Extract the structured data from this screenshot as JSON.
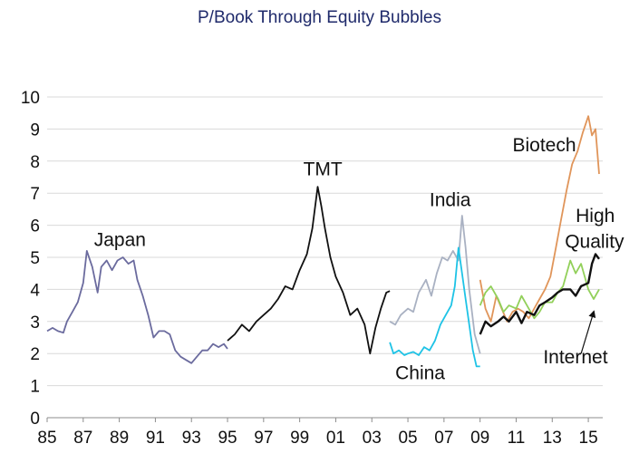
{
  "chart_data": {
    "type": "line",
    "title": "P/Book Through Equity Bubbles",
    "xlabel": "",
    "ylabel": "",
    "xlim": [
      1985,
      2015.8
    ],
    "ylim": [
      0,
      10
    ],
    "grid": true,
    "x_ticks": [
      1985,
      1987,
      1989,
      1991,
      1993,
      1995,
      1997,
      1999,
      2001,
      2003,
      2005,
      2007,
      2009,
      2011,
      2013,
      2015
    ],
    "x_tick_labels": [
      "85",
      "87",
      "89",
      "91",
      "93",
      "95",
      "97",
      "99",
      "01",
      "03",
      "05",
      "07",
      "09",
      "11",
      "13",
      "15"
    ],
    "y_ticks": [
      0,
      1,
      2,
      3,
      4,
      5,
      6,
      7,
      8,
      9,
      10
    ],
    "y_tick_labels": [
      "0",
      "1",
      "2",
      "3",
      "4",
      "5",
      "6",
      "7",
      "8",
      "9",
      "10"
    ],
    "series": [
      {
        "name": "Japan",
        "color": "#6b6b9e",
        "x": [
          1985.0,
          1985.3,
          1985.6,
          1985.9,
          1986.1,
          1986.4,
          1986.7,
          1987.0,
          1987.2,
          1987.5,
          1987.8,
          1988.0,
          1988.3,
          1988.6,
          1988.9,
          1989.2,
          1989.5,
          1989.8,
          1990.0,
          1990.3,
          1990.6,
          1990.9,
          1991.2,
          1991.5,
          1991.8,
          1992.1,
          1992.4,
          1992.7,
          1993.0,
          1993.3,
          1993.6,
          1993.9,
          1994.2,
          1994.5,
          1994.8,
          1995.0
        ],
        "y": [
          2.7,
          2.8,
          2.7,
          2.65,
          3.0,
          3.3,
          3.6,
          4.2,
          5.2,
          4.7,
          3.9,
          4.7,
          4.9,
          4.6,
          4.9,
          5.0,
          4.8,
          4.9,
          4.3,
          3.8,
          3.2,
          2.5,
          2.7,
          2.7,
          2.6,
          2.1,
          1.9,
          1.8,
          1.7,
          1.9,
          2.1,
          2.1,
          2.3,
          2.2,
          2.3,
          2.15
        ]
      },
      {
        "name": "TMT",
        "color": "#111111",
        "x": [
          1995.0,
          1995.4,
          1995.8,
          1996.2,
          1996.6,
          1997.0,
          1997.4,
          1997.8,
          1998.2,
          1998.6,
          1999.0,
          1999.4,
          1999.7,
          2000.0,
          2000.2,
          2000.4,
          2000.7,
          2001.0,
          2001.4,
          2001.8,
          2002.2,
          2002.6,
          2002.9,
          2003.2,
          2003.5,
          2003.8,
          2004.0
        ],
        "y": [
          2.4,
          2.6,
          2.9,
          2.7,
          3.0,
          3.2,
          3.4,
          3.7,
          4.1,
          4.0,
          4.6,
          5.1,
          5.9,
          7.2,
          6.6,
          5.9,
          5.0,
          4.4,
          3.9,
          3.2,
          3.4,
          2.9,
          2.0,
          2.8,
          3.4,
          3.9,
          3.95
        ]
      },
      {
        "name": "India",
        "color": "#a9b1c2",
        "x": [
          2004.0,
          2004.3,
          2004.6,
          2005.0,
          2005.3,
          2005.6,
          2006.0,
          2006.3,
          2006.6,
          2006.9,
          2007.2,
          2007.5,
          2007.8,
          2008.0,
          2008.2,
          2008.4,
          2008.7,
          2009.0
        ],
        "y": [
          3.0,
          2.9,
          3.2,
          3.4,
          3.3,
          3.9,
          4.3,
          3.8,
          4.5,
          5.0,
          4.9,
          5.2,
          4.9,
          6.3,
          5.3,
          4.0,
          2.6,
          2.0
        ]
      },
      {
        "name": "China",
        "color": "#1ec3e6",
        "x": [
          2004.0,
          2004.2,
          2004.5,
          2004.8,
          2005.0,
          2005.3,
          2005.6,
          2005.9,
          2006.2,
          2006.5,
          2006.8,
          2007.1,
          2007.4,
          2007.6,
          2007.8,
          2008.0,
          2008.2,
          2008.4,
          2008.6,
          2008.8,
          2009.0
        ],
        "y": [
          2.35,
          2.0,
          2.1,
          1.95,
          2.0,
          2.05,
          1.95,
          2.2,
          2.1,
          2.4,
          2.9,
          3.2,
          3.5,
          4.1,
          5.3,
          4.5,
          3.7,
          2.9,
          2.1,
          1.6,
          1.6
        ]
      },
      {
        "name": "Biotech",
        "color": "#e0955a",
        "x": [
          2009.0,
          2009.3,
          2009.6,
          2009.9,
          2010.2,
          2010.5,
          2010.8,
          2011.1,
          2011.4,
          2011.7,
          2012.0,
          2012.3,
          2012.6,
          2012.9,
          2013.2,
          2013.5,
          2013.8,
          2014.1,
          2014.4,
          2014.7,
          2015.0,
          2015.2,
          2015.4,
          2015.6
        ],
        "y": [
          4.3,
          3.4,
          3.0,
          3.8,
          3.4,
          3.0,
          3.3,
          3.4,
          3.3,
          3.1,
          3.4,
          3.7,
          4.0,
          4.4,
          5.3,
          6.2,
          7.1,
          7.9,
          8.3,
          8.9,
          9.4,
          8.8,
          9.0,
          7.6
        ]
      },
      {
        "name": "High Quality",
        "color": "#92d05a",
        "x": [
          2009.0,
          2009.3,
          2009.6,
          2010.0,
          2010.3,
          2010.6,
          2011.0,
          2011.3,
          2011.6,
          2012.0,
          2012.3,
          2012.6,
          2013.0,
          2013.3,
          2013.6,
          2014.0,
          2014.3,
          2014.6,
          2015.0,
          2015.3,
          2015.6
        ],
        "y": [
          3.5,
          3.9,
          4.1,
          3.7,
          3.3,
          3.5,
          3.4,
          3.8,
          3.5,
          3.1,
          3.3,
          3.6,
          3.6,
          3.9,
          4.1,
          4.9,
          4.5,
          4.8,
          4.0,
          3.7,
          4.0
        ]
      },
      {
        "name": "Internet",
        "color": "#111111",
        "x": [
          2009.0,
          2009.3,
          2009.6,
          2010.0,
          2010.3,
          2010.6,
          2011.0,
          2011.3,
          2011.6,
          2012.0,
          2012.3,
          2012.6,
          2013.0,
          2013.3,
          2013.6,
          2014.0,
          2014.3,
          2014.6,
          2015.0,
          2015.2,
          2015.4,
          2015.6
        ],
        "y": [
          2.6,
          3.0,
          2.85,
          3.0,
          3.15,
          3.0,
          3.3,
          2.95,
          3.3,
          3.2,
          3.5,
          3.6,
          3.75,
          3.9,
          4.0,
          4.0,
          3.8,
          4.1,
          4.2,
          4.8,
          5.1,
          4.95
        ]
      }
    ],
    "annotations": [
      {
        "text": "Japan",
        "x": 1987.6,
        "y": 5.35
      },
      {
        "text": "TMT",
        "x": 1999.2,
        "y": 7.55
      },
      {
        "text": "India",
        "x": 2006.2,
        "y": 6.6
      },
      {
        "text": "China",
        "x": 2004.3,
        "y": 1.2
      },
      {
        "text": "Biotech",
        "x": 2010.8,
        "y": 8.3
      },
      {
        "text": "High",
        "x": 2014.3,
        "y": 6.1
      },
      {
        "text": "Quality",
        "x": 2013.7,
        "y": 5.3
      },
      {
        "text": "Internet",
        "x": 2012.5,
        "y": 1.7
      }
    ],
    "arrow": {
      "label": "Internet",
      "from": [
        2014.6,
        2.0
      ],
      "to": [
        2015.3,
        3.3
      ]
    }
  }
}
